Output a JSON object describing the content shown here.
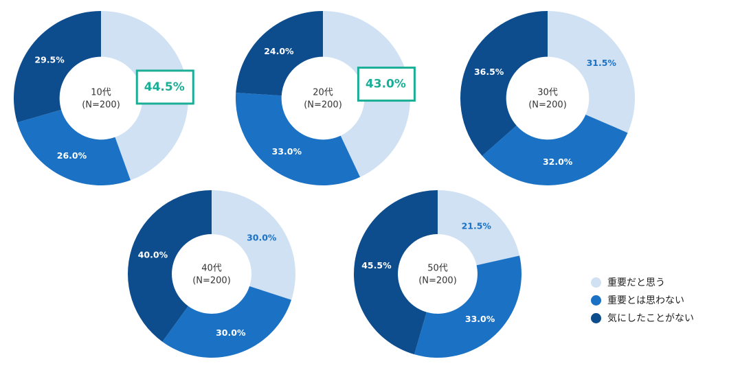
{
  "colors": {
    "light": "#cfe1f3",
    "mid": "#1b72c5",
    "dark": "#0d4d8e",
    "highlight": "#1aae96",
    "light_label": "#1b72c5",
    "dark_label": "#ffffff"
  },
  "legend": [
    {
      "label": "重要だと思う",
      "color": "#cfe1f3"
    },
    {
      "label": "重要とは思わない",
      "color": "#1b72c5"
    },
    {
      "label": "気にしたことがない",
      "color": "#0d4d8e"
    }
  ],
  "chart_data": [
    {
      "type": "pie",
      "center_label": "10代",
      "center_sublabel": "(N=200)",
      "categories": [
        "重要だと思う",
        "重要とは思わない",
        "気にしたことがない"
      ],
      "values": [
        44.5,
        26.0,
        29.5
      ],
      "labels": [
        "44.5%",
        "26.0%",
        "29.5%"
      ],
      "highlight": true
    },
    {
      "type": "pie",
      "center_label": "20代",
      "center_sublabel": "(N=200)",
      "categories": [
        "重要だと思う",
        "重要とは思わない",
        "気にしたことがない"
      ],
      "values": [
        43.0,
        33.0,
        24.0
      ],
      "labels": [
        "43.0%",
        "33.0%",
        "24.0%"
      ],
      "highlight": true
    },
    {
      "type": "pie",
      "center_label": "30代",
      "center_sublabel": "(N=200)",
      "categories": [
        "重要だと思う",
        "重要とは思わない",
        "気にしたことがない"
      ],
      "values": [
        31.5,
        32.0,
        36.5
      ],
      "labels": [
        "31.5%",
        "32.0%",
        "36.5%"
      ],
      "highlight": false
    },
    {
      "type": "pie",
      "center_label": "40代",
      "center_sublabel": "(N=200)",
      "categories": [
        "重要だと思う",
        "重要とは思わない",
        "気にしたことがない"
      ],
      "values": [
        30.0,
        30.0,
        40.0
      ],
      "labels": [
        "30.0%",
        "30.0%",
        "40.0%"
      ],
      "highlight": false
    },
    {
      "type": "pie",
      "center_label": "50代",
      "center_sublabel": "(N=200)",
      "categories": [
        "重要だと思う",
        "重要とは思わない",
        "気にしたことがない"
      ],
      "values": [
        21.5,
        33.0,
        45.5
      ],
      "labels": [
        "21.5%",
        "33.0%",
        "45.5%"
      ],
      "highlight": false
    }
  ]
}
